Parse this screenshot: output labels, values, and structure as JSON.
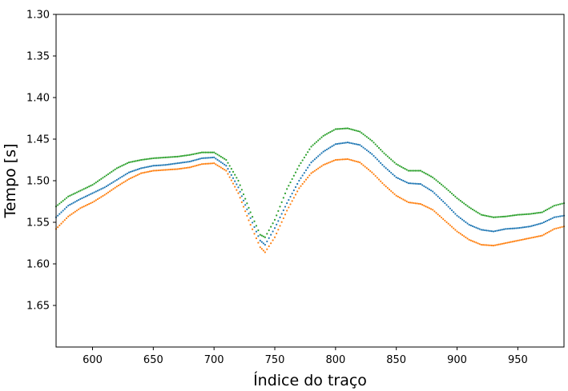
{
  "chart_data": {
    "type": "scatter",
    "title": "",
    "xlabel": "Índice do traço",
    "ylabel": "Tempo [s]",
    "xlim": [
      570,
      988
    ],
    "ylim": [
      1.7,
      1.3
    ],
    "y_inverted": true,
    "grid": false,
    "x_ticks": [
      600,
      650,
      700,
      750,
      800,
      850,
      900,
      950
    ],
    "x_tick_labels": [
      "600",
      "650",
      "700",
      "750",
      "800",
      "850",
      "900",
      "950"
    ],
    "y_ticks": [
      1.3,
      1.35,
      1.4,
      1.45,
      1.5,
      1.55,
      1.6,
      1.65
    ],
    "y_tick_labels": [
      "1.30",
      "1.35",
      "1.40",
      "1.45",
      "1.50",
      "1.55",
      "1.60",
      "1.65"
    ],
    "marker": "dot",
    "series": [
      {
        "color": "#1f77b4",
        "x": [
          570,
          580,
          590,
          600,
          610,
          620,
          630,
          640,
          650,
          660,
          670,
          680,
          690,
          700,
          710,
          720,
          730,
          738,
          742,
          750,
          760,
          770,
          780,
          790,
          800,
          810,
          820,
          830,
          840,
          850,
          860,
          870,
          880,
          890,
          900,
          910,
          920,
          930,
          940,
          950,
          960,
          970,
          980,
          988
        ],
        "y": [
          1.544,
          1.53,
          1.522,
          1.515,
          1.508,
          1.499,
          1.49,
          1.485,
          1.482,
          1.481,
          1.479,
          1.477,
          1.473,
          1.472,
          1.482,
          1.508,
          1.545,
          1.572,
          1.577,
          1.557,
          1.527,
          1.5,
          1.478,
          1.465,
          1.456,
          1.454,
          1.457,
          1.468,
          1.483,
          1.496,
          1.503,
          1.504,
          1.513,
          1.527,
          1.542,
          1.553,
          1.559,
          1.561,
          1.558,
          1.557,
          1.555,
          1.551,
          1.544,
          1.542
        ]
      },
      {
        "color": "#ff7f0e",
        "x": [
          570,
          580,
          590,
          600,
          610,
          620,
          630,
          640,
          650,
          660,
          670,
          680,
          690,
          700,
          710,
          720,
          730,
          738,
          742,
          750,
          760,
          770,
          780,
          790,
          800,
          810,
          820,
          830,
          840,
          850,
          860,
          870,
          880,
          890,
          900,
          910,
          920,
          930,
          940,
          950,
          960,
          970,
          980,
          988
        ],
        "y": [
          1.558,
          1.543,
          1.533,
          1.526,
          1.517,
          1.507,
          1.498,
          1.491,
          1.488,
          1.487,
          1.486,
          1.484,
          1.48,
          1.479,
          1.488,
          1.515,
          1.553,
          1.58,
          1.586,
          1.568,
          1.536,
          1.509,
          1.491,
          1.481,
          1.475,
          1.474,
          1.478,
          1.49,
          1.505,
          1.518,
          1.526,
          1.528,
          1.535,
          1.548,
          1.561,
          1.571,
          1.577,
          1.578,
          1.575,
          1.572,
          1.569,
          1.566,
          1.558,
          1.555
        ]
      },
      {
        "color": "#2ca02c",
        "x": [
          570,
          580,
          590,
          600,
          610,
          620,
          630,
          640,
          650,
          660,
          670,
          680,
          690,
          700,
          710,
          720,
          730,
          738,
          742,
          750,
          760,
          770,
          780,
          790,
          800,
          810,
          820,
          830,
          840,
          850,
          860,
          870,
          880,
          890,
          900,
          910,
          920,
          930,
          940,
          950,
          960,
          970,
          980,
          988
        ],
        "y": [
          1.531,
          1.519,
          1.512,
          1.505,
          1.495,
          1.485,
          1.478,
          1.475,
          1.473,
          1.472,
          1.471,
          1.469,
          1.466,
          1.466,
          1.475,
          1.5,
          1.538,
          1.565,
          1.568,
          1.547,
          1.51,
          1.482,
          1.459,
          1.446,
          1.438,
          1.437,
          1.441,
          1.452,
          1.467,
          1.48,
          1.488,
          1.488,
          1.496,
          1.508,
          1.521,
          1.532,
          1.541,
          1.544,
          1.543,
          1.541,
          1.54,
          1.538,
          1.53,
          1.527
        ]
      }
    ]
  }
}
